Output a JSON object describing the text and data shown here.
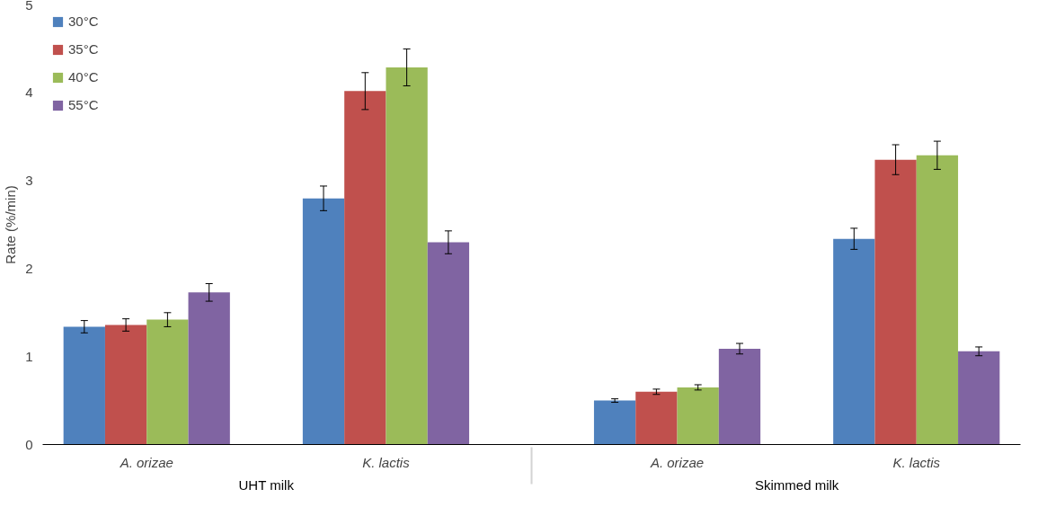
{
  "chart_data": {
    "type": "bar",
    "ylabel": "Rate (%/min)",
    "categories": [
      "A. orizae",
      "K. lactis",
      "A. orizae",
      "K. lactis"
    ],
    "annotations": [
      "UHT milk",
      "Skimmed milk"
    ],
    "series": [
      {
        "name": "30°C",
        "color": "#4f81bd",
        "values": [
          1.34,
          2.8,
          0.5,
          2.34
        ],
        "errors": [
          0.07,
          0.14,
          0.02,
          0.12
        ]
      },
      {
        "name": "35°C",
        "color": "#c0504d",
        "values": [
          1.36,
          4.02,
          0.6,
          3.24
        ],
        "errors": [
          0.07,
          0.21,
          0.03,
          0.17
        ]
      },
      {
        "name": "40°C",
        "color": "#9bbb59",
        "values": [
          1.42,
          4.29,
          0.65,
          3.29
        ],
        "errors": [
          0.08,
          0.21,
          0.03,
          0.16
        ]
      },
      {
        "name": "55°C",
        "color": "#8064a2",
        "values": [
          1.73,
          2.3,
          1.09,
          1.06
        ],
        "errors": [
          0.1,
          0.13,
          0.06,
          0.05
        ]
      }
    ],
    "ylim": [
      0,
      5
    ],
    "yticks": [
      0,
      1,
      2,
      3,
      4,
      5
    ],
    "grid": false,
    "legend": "top left"
  }
}
